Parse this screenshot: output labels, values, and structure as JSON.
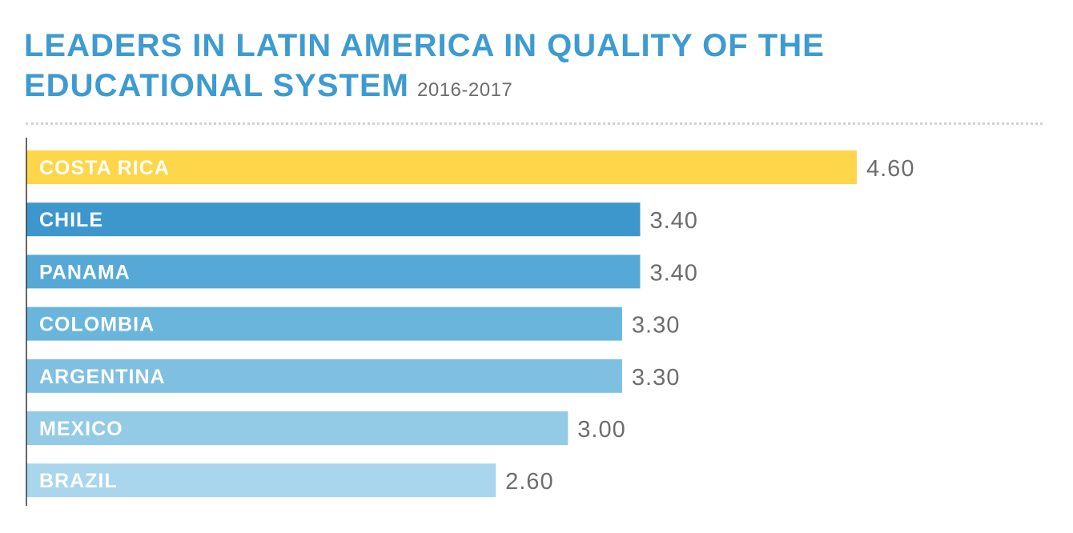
{
  "title_line1": "LEADERS IN LATIN AMERICA IN QUALITY OF THE",
  "title_line2": "EDUCATIONAL SYSTEM",
  "subtitle": "2016-2017",
  "colors": {
    "title": "#3d9bd0",
    "value_text": "#6d6d6d",
    "axis": "#333333"
  },
  "chart_data": {
    "type": "bar",
    "orientation": "horizontal",
    "categories": [
      "COSTA RICA",
      "CHILE",
      "PANAMA",
      "COLOMBIA",
      "ARGENTINA",
      "MEXICO",
      "BRAZIL"
    ],
    "values": [
      4.6,
      3.4,
      3.4,
      3.3,
      3.3,
      3.0,
      2.6
    ],
    "value_labels": [
      "4.60",
      "3.40",
      "3.40",
      "3.30",
      "3.30",
      "3.00",
      "2.60"
    ],
    "bar_colors": [
      "#fdd649",
      "#3d97cc",
      "#56a9d6",
      "#6ab5dc",
      "#7fc0e2",
      "#93cbe6",
      "#a9d6ec"
    ],
    "xlim": [
      0,
      4.6
    ],
    "grid": false,
    "legend": "none"
  }
}
